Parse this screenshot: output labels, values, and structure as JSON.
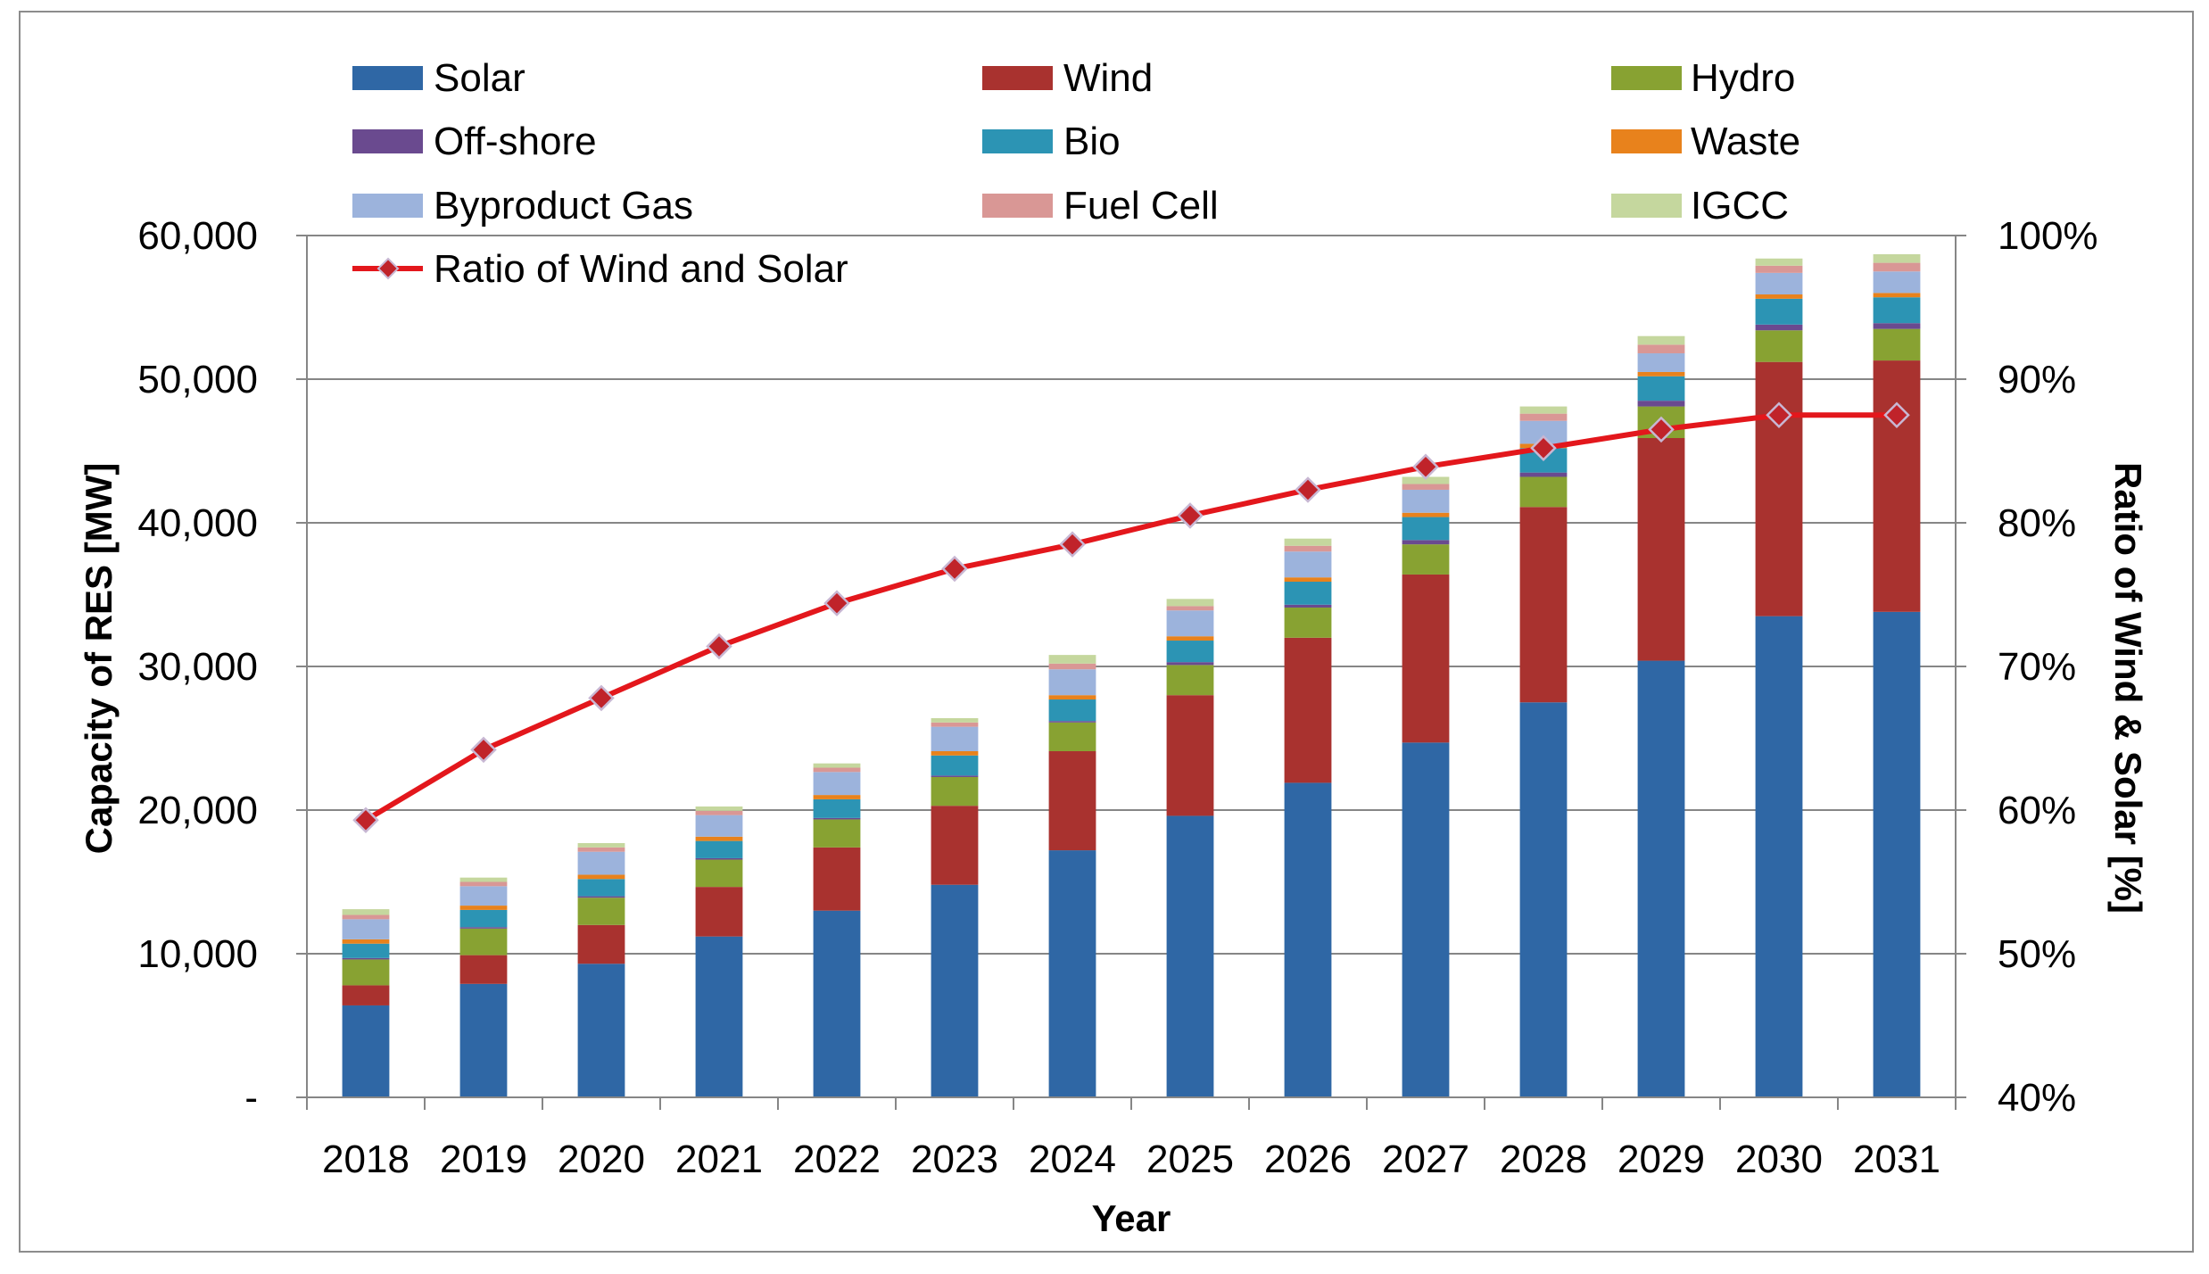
{
  "chart_data": {
    "type": "bar",
    "stacked": true,
    "categories": [
      "2018",
      "2019",
      "2020",
      "2021",
      "2022",
      "2023",
      "2024",
      "2025",
      "2026",
      "2027",
      "2028",
      "2029",
      "2030",
      "2031"
    ],
    "xlabel": "Year",
    "ylabel": "Capacity of RES [MW]",
    "y2label": "Ratio of Wind & Solar [%]",
    "ylim": [
      0,
      60000
    ],
    "y2lim": [
      40,
      100
    ],
    "yticks": [
      0,
      10000,
      20000,
      30000,
      40000,
      50000,
      60000
    ],
    "ytick_labels": [
      "-",
      "10,000",
      "20,000",
      "30,000",
      "40,000",
      "50,000",
      "60,000"
    ],
    "y2ticks": [
      40,
      50,
      60,
      70,
      80,
      90,
      100
    ],
    "y2tick_labels": [
      "40%",
      "50%",
      "60%",
      "70%",
      "80%",
      "90%",
      "100%"
    ],
    "grid": true,
    "legend_position": "top",
    "series": [
      {
        "name": "Solar",
        "color": "#2F67A5",
        "values": [
          6400,
          7900,
          9300,
          11200,
          13000,
          14800,
          17200,
          19600,
          21900,
          24700,
          27500,
          30400,
          33500,
          33800
        ]
      },
      {
        "name": "Wind",
        "color": "#A9322F",
        "values": [
          1400,
          2000,
          2700,
          3450,
          4400,
          5500,
          6900,
          8400,
          10100,
          11700,
          13600,
          15500,
          17700,
          17500
        ]
      },
      {
        "name": "Hydro",
        "color": "#88A232",
        "values": [
          1800,
          1850,
          1900,
          1900,
          1950,
          2000,
          2000,
          2100,
          2100,
          2100,
          2100,
          2200,
          2200,
          2200
        ]
      },
      {
        "name": "Off-shore",
        "color": "#6A4A8F",
        "values": [
          100,
          100,
          100,
          100,
          100,
          100,
          100,
          200,
          200,
          300,
          300,
          400,
          400,
          400
        ]
      },
      {
        "name": "Bio",
        "color": "#2C94B4",
        "values": [
          1000,
          1200,
          1200,
          1200,
          1300,
          1400,
          1500,
          1500,
          1600,
          1600,
          1700,
          1700,
          1800,
          1800
        ]
      },
      {
        "name": "Waste",
        "color": "#E8821C",
        "values": [
          300,
          300,
          300,
          300,
          300,
          300,
          300,
          300,
          300,
          300,
          300,
          300,
          300,
          300
        ]
      },
      {
        "name": "Byproduct Gas",
        "color": "#9CB3DC",
        "values": [
          1400,
          1350,
          1600,
          1500,
          1600,
          1700,
          1800,
          1800,
          1800,
          1600,
          1600,
          1300,
          1500,
          1500
        ]
      },
      {
        "name": "Fuel Cell",
        "color": "#D99795",
        "values": [
          300,
          300,
          300,
          300,
          300,
          300,
          400,
          300,
          400,
          400,
          500,
          600,
          500,
          600
        ]
      },
      {
        "name": "IGCC",
        "color": "#C5D79E",
        "values": [
          400,
          300,
          300,
          300,
          300,
          300,
          600,
          500,
          500,
          500,
          500,
          600,
          500,
          600
        ]
      }
    ],
    "secondary_series": {
      "type": "line",
      "name": "Ratio of Wind and Solar",
      "color": "#E3171C",
      "marker": "diamond",
      "marker_color": "#C0232A",
      "marker_edge_color": "#C8B7D3",
      "values": [
        59.3,
        64.2,
        67.8,
        71.4,
        74.4,
        76.8,
        78.5,
        80.5,
        82.3,
        83.9,
        85.2,
        86.5,
        87.5,
        87.5
      ]
    }
  },
  "style": {
    "gridline_color": "#868686",
    "axis_color": "#868686",
    "frame_color": "#8C8C8C",
    "background": "#FFFFFF"
  }
}
